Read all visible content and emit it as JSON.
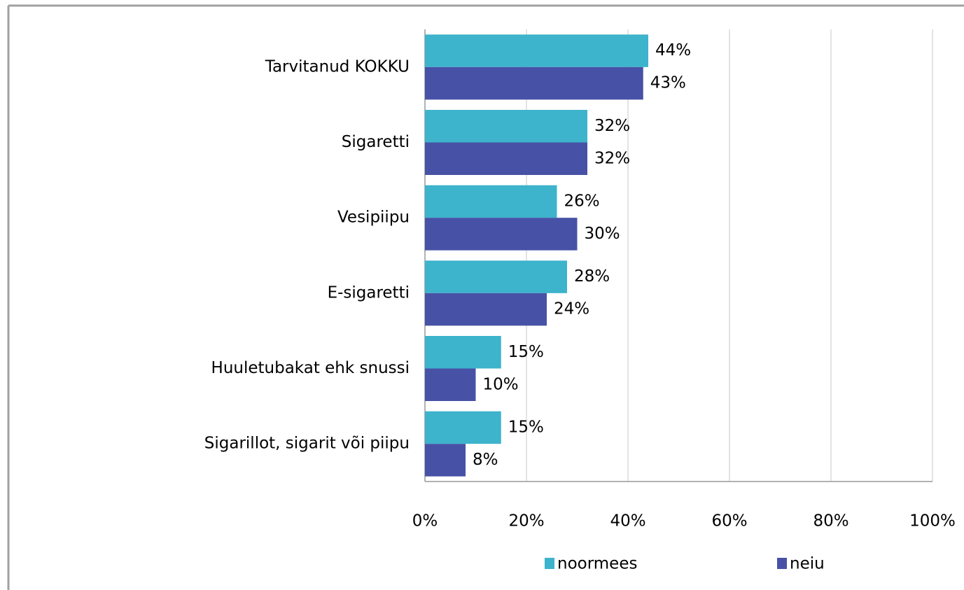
{
  "chart_data": {
    "type": "bar",
    "orientation": "horizontal",
    "categories": [
      "Tarvitanud KOKKU",
      "Sigaretti",
      "Vesipiipu",
      "E-sigaretti",
      "Huuletubakat ehk snussi",
      "Sigarillot, sigarit või piipu"
    ],
    "series": [
      {
        "name": "noormees",
        "color": "#3db3cc",
        "values": [
          44,
          32,
          26,
          28,
          15,
          15
        ],
        "value_labels": [
          "44%",
          "32%",
          "26%",
          "28%",
          "15%",
          "15%"
        ]
      },
      {
        "name": "neiu",
        "color": "#4752a6",
        "values": [
          43,
          32,
          30,
          24,
          10,
          8
        ],
        "value_labels": [
          "43%",
          "32%",
          "30%",
          "24%",
          "10%",
          "8%"
        ]
      }
    ],
    "xlim": [
      0,
      100
    ],
    "xticks": [
      {
        "value": 0,
        "label": "0%"
      },
      {
        "value": 20,
        "label": "20%"
      },
      {
        "value": 40,
        "label": "40%"
      },
      {
        "value": 60,
        "label": "60%"
      },
      {
        "value": 80,
        "label": "80%"
      },
      {
        "value": 100,
        "label": "100%"
      }
    ],
    "grid": true,
    "legend": "bottom"
  }
}
